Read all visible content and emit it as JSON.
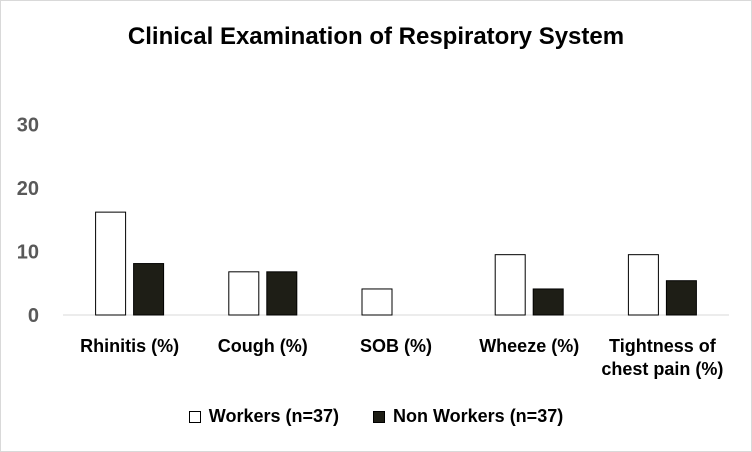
{
  "chart_data": {
    "type": "bar",
    "title": "Clinical Examination of Respiratory  System",
    "categories": [
      "Rhinitis (%)",
      "Cough (%)",
      "SOB (%)",
      "Wheeze (%)",
      "Tightness of chest pain (%)"
    ],
    "category_lines": [
      [
        "Rhinitis (%)"
      ],
      [
        "Cough (%)"
      ],
      [
        "SOB (%)"
      ],
      [
        "Wheeze (%)"
      ],
      [
        "Tightness of",
        "chest pain (%)"
      ]
    ],
    "series": [
      {
        "name": "Workers (n=37)",
        "values": [
          16.2,
          6.8,
          4.1,
          9.5,
          9.5
        ],
        "color": "#ffffff",
        "stroke": "#000000"
      },
      {
        "name": "Non Workers (n=37)",
        "values": [
          8.1,
          6.8,
          0,
          4.1,
          5.4
        ],
        "color": "#1e1e16",
        "stroke": "#000000"
      }
    ],
    "yticks": [
      0,
      10,
      20,
      30
    ],
    "ylim": [
      0,
      30
    ],
    "xlabel": "",
    "ylabel": "",
    "grid": false,
    "legend_position": "bottom"
  }
}
